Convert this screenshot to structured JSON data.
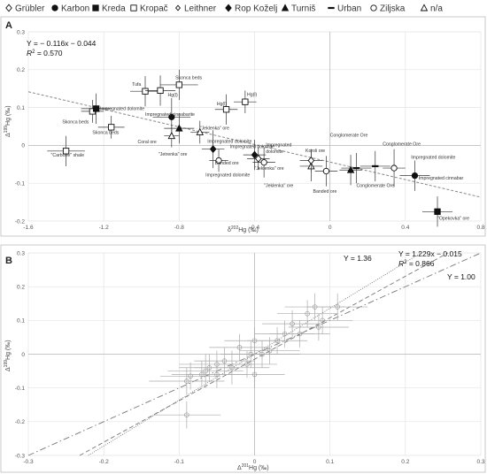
{
  "legend": [
    {
      "name": "Grübler",
      "marker": "diamond-open"
    },
    {
      "name": "Karbon",
      "marker": "circle-filled"
    },
    {
      "name": "Kreda",
      "marker": "square-filled"
    },
    {
      "name": "Kropač",
      "marker": "square-open"
    },
    {
      "name": "Leithner",
      "marker": "diamond-open-small"
    },
    {
      "name": "Rop Koželj",
      "marker": "diamond-filled"
    },
    {
      "name": "Turniš",
      "marker": "triangle-filled"
    },
    {
      "name": "Urban",
      "marker": "dash"
    },
    {
      "name": "Ziljska",
      "marker": "circle-open"
    },
    {
      "name": "n/a",
      "marker": "triangle-open"
    }
  ],
  "chart_data": [
    {
      "type": "scatter",
      "panel": "A",
      "xlabel": "δ202Hg (‰)",
      "ylabel": "Δ199Hg (‰)",
      "xlim": [
        -1.6,
        0.8
      ],
      "ylim": [
        -0.2,
        0.3
      ],
      "xticks": [
        "-1.6",
        "-1.2",
        "-0.8",
        "-0.4",
        "0",
        "0.4",
        "0.8"
      ],
      "yticks": [
        "0.3",
        "0.2",
        "0.1",
        "0",
        "-0.1",
        "-0.2"
      ],
      "grid": true,
      "fit": {
        "slope": -0.116,
        "intercept": -0.044,
        "equation": "Y = − 0.116x − 0.044",
        "r2": "R2 = 0.570"
      },
      "points": [
        {
          "x": -1.4,
          "y": -0.015,
          "ex": 0.1,
          "ey": 0.04,
          "m": "square-open",
          "label": "\"Carbone\" shale"
        },
        {
          "x": -1.26,
          "y": 0.09,
          "ex": 0.06,
          "ey": 0.03,
          "m": "square-open",
          "label": "Skonca beds"
        },
        {
          "x": -1.24,
          "y": 0.097,
          "ex": 0.08,
          "ey": 0.04,
          "m": "square-filled",
          "label": "Impregnated dolomite"
        },
        {
          "x": -1.16,
          "y": 0.048,
          "ex": 0.07,
          "ey": 0.03,
          "m": "square-open",
          "label": "Skonca beds"
        },
        {
          "x": -0.98,
          "y": 0.143,
          "ex": 0.08,
          "ey": 0.04,
          "m": "square-open",
          "label": "Tufa"
        },
        {
          "x": -0.9,
          "y": 0.145,
          "ex": 0.08,
          "ey": 0.04,
          "m": "square-open",
          "label": "Hg(l)"
        },
        {
          "x": -0.8,
          "y": 0.16,
          "ex": 0.1,
          "ey": 0.04,
          "m": "square-open",
          "label": "Skonca beds"
        },
        {
          "x": -0.84,
          "y": 0.075,
          "ex": 0.1,
          "ey": 0.05,
          "m": "circle-filled",
          "label": "Impregnated cinnabarite"
        },
        {
          "x": -0.84,
          "y": 0.025,
          "ex": 0.04,
          "ey": 0.03,
          "m": "triangle-open",
          "label": "Coral ore"
        },
        {
          "x": -0.8,
          "y": 0.045,
          "ex": 0.08,
          "ey": 0.04,
          "m": "triangle-filled",
          "label": "\"Jetrenka\" ore"
        },
        {
          "x": -0.69,
          "y": 0.035,
          "ex": 0.05,
          "ey": 0.03,
          "m": "triangle-open",
          "label": "\"Jeklenka\" ore"
        },
        {
          "x": -0.62,
          "y": -0.01,
          "ex": 0.06,
          "ey": 0.05,
          "m": "diamond-filled",
          "label": "Impregnated dolomite"
        },
        {
          "x": -0.55,
          "y": 0.095,
          "ex": 0.06,
          "ey": 0.04,
          "m": "square-open",
          "label": "Hg(l)"
        },
        {
          "x": -0.45,
          "y": 0.115,
          "ex": 0.06,
          "ey": 0.03,
          "m": "square-open",
          "label": "Hg(l)"
        },
        {
          "x": -0.59,
          "y": -0.04,
          "ex": 0.05,
          "ey": 0.03,
          "m": "circle-open",
          "label": "Banded ore"
        },
        {
          "x": -0.4,
          "y": -0.025,
          "ex": 0.06,
          "ey": 0.04,
          "m": "diamond-filled",
          "label": "Impregnated dolomite"
        },
        {
          "x": -0.35,
          "y": -0.045,
          "ex": 0.06,
          "ey": 0.04,
          "m": "circle-open",
          "label": "Impregnated dolomite"
        },
        {
          "x": -0.38,
          "y": -0.035,
          "ex": 0.06,
          "ey": 0.03,
          "m": "diamond-open",
          "label": "Impregnated dolomite"
        },
        {
          "x": -0.1,
          "y": -0.055,
          "ex": 0.06,
          "ey": 0.04,
          "m": "triangle-open",
          "label": "\"Jeklenka\" ore"
        },
        {
          "x": -0.1,
          "y": -0.04,
          "ex": 0.06,
          "ey": 0.03,
          "m": "diamond-open",
          "label": "Koroli ore"
        },
        {
          "x": -0.02,
          "y": -0.068,
          "ex": 0.06,
          "ey": 0.04,
          "m": "circle-open",
          "label": "Banded ore"
        },
        {
          "x": 0.11,
          "y": -0.065,
          "ex": 0.06,
          "ey": 0.04,
          "m": "triangle-filled",
          "label": "\"Jeklenka\" ore"
        },
        {
          "x": 0.14,
          "y": -0.06,
          "ex": 0.08,
          "ey": 0.04,
          "m": "dash",
          "label": "Conglomerate Ore"
        },
        {
          "x": 0.24,
          "y": -0.055,
          "ex": 0.08,
          "ey": 0.04,
          "m": "dash",
          "label": "Conglomerate Ore"
        },
        {
          "x": 0.34,
          "y": -0.06,
          "ex": 0.06,
          "ey": 0.05,
          "m": "circle-open",
          "label": "Conglomerate Ore"
        },
        {
          "x": 0.45,
          "y": -0.08,
          "ex": 0.08,
          "ey": 0.04,
          "m": "circle-filled",
          "label": "Impregnated dolomite"
        },
        {
          "x": 0.57,
          "y": -0.175,
          "ex": 0.08,
          "ey": 0.04,
          "m": "square-filled",
          "label": "\"Opekovka\" ore"
        }
      ],
      "labels": [
        {
          "x": -1.48,
          "y": -0.03,
          "text": "\"Carbone\" shale"
        },
        {
          "x": -1.42,
          "y": 0.058,
          "text": "Skonca beds"
        },
        {
          "x": -1.22,
          "y": 0.093,
          "text": "Impregnated dolomite"
        },
        {
          "x": -1.26,
          "y": 0.03,
          "text": "Skonca beds"
        },
        {
          "x": -1.05,
          "y": 0.158,
          "text": "Tufa"
        },
        {
          "x": -0.86,
          "y": 0.13,
          "text": "Hg(l)"
        },
        {
          "x": -0.82,
          "y": 0.175,
          "text": "Skonca beds"
        },
        {
          "x": -0.98,
          "y": 0.078,
          "text": "Impregnated cinnabarite"
        },
        {
          "x": -1.02,
          "y": 0.006,
          "text": "Coral ore"
        },
        {
          "x": -0.91,
          "y": -0.027,
          "text": "\"Jetrenka\" ore"
        },
        {
          "x": -0.69,
          "y": 0.042,
          "text": "\"Jeklenka\" ore"
        },
        {
          "x": -0.6,
          "y": 0.106,
          "text": "Hg(l)"
        },
        {
          "x": -0.44,
          "y": 0.131,
          "text": "Hg(l)"
        },
        {
          "x": -0.65,
          "y": 0.007,
          "text": "Impregnated dolomite"
        },
        {
          "x": -0.53,
          "y": -0.007,
          "text": "Impregnated dolomite"
        },
        {
          "x": -0.34,
          "y": -0.003,
          "text": "Impregnated"
        },
        {
          "x": -0.34,
          "y": -0.02,
          "text": "dolomite"
        },
        {
          "x": -0.61,
          "y": -0.051,
          "text": "Banded ore"
        },
        {
          "x": -0.66,
          "y": -0.082,
          "text": "Impregnated dolomite"
        },
        {
          "x": -0.4,
          "y": -0.065,
          "text": "\"Jeklenka\" ore"
        },
        {
          "x": -0.13,
          "y": -0.018,
          "text": "Koroli ore"
        },
        {
          "x": -0.35,
          "y": -0.11,
          "text": "\"Jeklenka\" ore"
        },
        {
          "x": -0.09,
          "y": -0.125,
          "text": "Banded ore"
        },
        {
          "x": 0.0,
          "y": 0.023,
          "text": "Conglomerate Ore"
        },
        {
          "x": 0.28,
          "y": 0.0,
          "text": "Conglomerate Ore"
        },
        {
          "x": 0.14,
          "y": -0.11,
          "text": "Conglomerate Ore"
        },
        {
          "x": 0.43,
          "y": -0.035,
          "text": "Impregnated dolomite"
        },
        {
          "x": 0.47,
          "y": -0.09,
          "text": "Impregnated cinnabar"
        },
        {
          "x": 0.57,
          "y": -0.196,
          "text": "\"Opekovka\" ore"
        }
      ]
    },
    {
      "type": "scatter",
      "panel": "B",
      "xlabel": "Δ201Hg (‰)",
      "ylabel": "Δ199Hg (‰)",
      "xlim": [
        -0.3,
        0.3
      ],
      "ylim": [
        -0.3,
        0.3
      ],
      "xticks": [
        "-0.3",
        "-0.2",
        "-0.1",
        "0",
        "0.1",
        "0.2",
        "0.3"
      ],
      "yticks": [
        "0.3",
        "0.2",
        "0.1",
        "0",
        "-0.1",
        "-0.2",
        "-0.3"
      ],
      "grid": true,
      "lines": [
        {
          "label": "Y = 1.36",
          "slope": 1.36,
          "intercept": 0,
          "style": "dotted"
        },
        {
          "label": "Y = 1.229x − 0.015",
          "r2": "R2 = 0.866",
          "slope": 1.229,
          "intercept": -0.015,
          "style": "dashed"
        },
        {
          "label": "Y = 1.00",
          "slope": 1.0,
          "intercept": 0,
          "style": "dashdot"
        }
      ],
      "points": [
        {
          "x": -0.09,
          "y": -0.18,
          "ex": 0.045,
          "ey": 0.04
        },
        {
          "x": -0.09,
          "y": -0.08,
          "ex": 0.05,
          "ey": 0.04
        },
        {
          "x": -0.085,
          "y": -0.065,
          "ex": 0.04,
          "ey": 0.04
        },
        {
          "x": -0.07,
          "y": -0.06,
          "ex": 0.04,
          "ey": 0.04
        },
        {
          "x": -0.065,
          "y": -0.05,
          "ex": 0.05,
          "ey": 0.05
        },
        {
          "x": -0.06,
          "y": -0.04,
          "ex": 0.04,
          "ey": 0.04
        },
        {
          "x": -0.05,
          "y": -0.03,
          "ex": 0.05,
          "ey": 0.04
        },
        {
          "x": -0.05,
          "y": -0.06,
          "ex": 0.04,
          "ey": 0.04
        },
        {
          "x": -0.04,
          "y": -0.02,
          "ex": 0.04,
          "ey": 0.04
        },
        {
          "x": -0.03,
          "y": -0.04,
          "ex": 0.05,
          "ey": 0.05
        },
        {
          "x": -0.02,
          "y": 0.02,
          "ex": 0.04,
          "ey": 0.04
        },
        {
          "x": -0.01,
          "y": -0.03,
          "ex": 0.04,
          "ey": 0.04
        },
        {
          "x": -0.005,
          "y": 0.0,
          "ex": 0.04,
          "ey": 0.04
        },
        {
          "x": 0.0,
          "y": -0.06,
          "ex": 0.04,
          "ey": 0.04
        },
        {
          "x": 0.0,
          "y": 0.04,
          "ex": 0.04,
          "ey": 0.04
        },
        {
          "x": 0.01,
          "y": 0.0,
          "ex": 0.05,
          "ey": 0.04
        },
        {
          "x": 0.02,
          "y": 0.01,
          "ex": 0.04,
          "ey": 0.04
        },
        {
          "x": 0.03,
          "y": 0.04,
          "ex": 0.04,
          "ey": 0.04
        },
        {
          "x": 0.04,
          "y": 0.06,
          "ex": 0.04,
          "ey": 0.04
        },
        {
          "x": 0.05,
          "y": 0.09,
          "ex": 0.04,
          "ey": 0.04
        },
        {
          "x": 0.06,
          "y": 0.06,
          "ex": 0.04,
          "ey": 0.04
        },
        {
          "x": 0.07,
          "y": 0.12,
          "ex": 0.04,
          "ey": 0.04
        },
        {
          "x": 0.08,
          "y": 0.14,
          "ex": 0.04,
          "ey": 0.04
        },
        {
          "x": 0.085,
          "y": 0.08,
          "ex": 0.04,
          "ey": 0.04
        },
        {
          "x": 0.09,
          "y": 0.1,
          "ex": 0.04,
          "ey": 0.04
        },
        {
          "x": 0.11,
          "y": 0.14,
          "ex": 0.04,
          "ey": 0.04
        }
      ]
    }
  ]
}
